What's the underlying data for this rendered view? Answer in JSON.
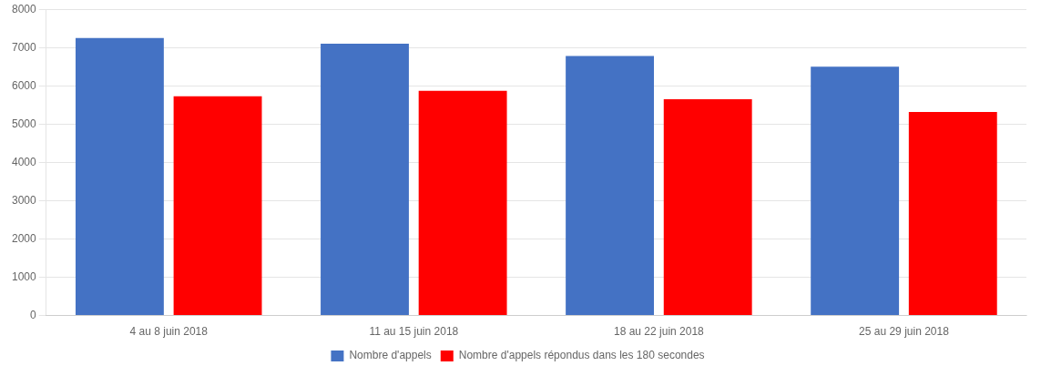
{
  "chart_data": {
    "type": "bar",
    "categories": [
      "4 au 8 juin 2018",
      "11 au 15 juin 2018",
      "18 au 22 juin 2018",
      "25 au 29 juin 2018"
    ],
    "series": [
      {
        "name": "Nombre d'appels",
        "color": "#4472C4",
        "values": [
          7250,
          7100,
          6780,
          6500
        ]
      },
      {
        "name": "Nombre d'appels répondus dans les 180 secondes",
        "color": "#FF0000",
        "values": [
          5730,
          5870,
          5650,
          5320
        ]
      }
    ],
    "ylim": [
      0,
      8000
    ],
    "yticks": [
      0,
      1000,
      2000,
      3000,
      4000,
      5000,
      6000,
      7000,
      8000
    ],
    "grid": true,
    "legend": "bottom"
  }
}
